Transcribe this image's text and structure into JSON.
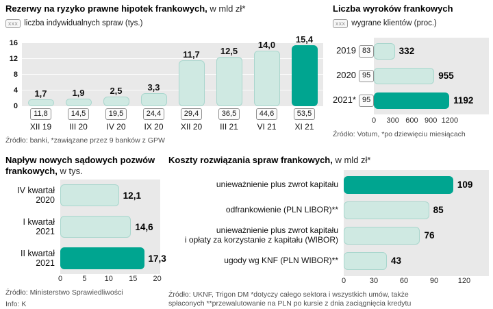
{
  "colors": {
    "teal_dark": "#00a590",
    "teal_light": "#cfe9e2",
    "plot_background": "#e9e9e9"
  },
  "chart_data": [
    {
      "id": "loan-loss-reserves",
      "type": "bar",
      "orientation": "vertical",
      "title_bold": "Rezerwy na ryzyko prawne hipotek frankowych,",
      "title_rest": " w mld zł*",
      "legend_key": "xxx",
      "legend_label": "liczba indywidualnych spraw (tys.)",
      "ylim": [
        0,
        16
      ],
      "yticks": [
        "16",
        "12",
        "8",
        "4",
        "0"
      ],
      "categories": [
        "XII 19",
        "III 20",
        "IV 20",
        "IX 20",
        "XII 20",
        "III 21",
        "VI 21",
        "XI 21"
      ],
      "values": [
        1.7,
        1.9,
        2.5,
        3.3,
        11.7,
        12.5,
        14.0,
        15.4
      ],
      "value_labels": [
        "1,7",
        "1,9",
        "2,5",
        "3,3",
        "11,7",
        "12,5",
        "14,0",
        "15,4"
      ],
      "individual_cases_thousands": [
        "11,8",
        "14,5",
        "19,5",
        "24,4",
        "29,4",
        "36,5",
        "44,6",
        "53,5"
      ],
      "highlight_index": 7,
      "source": "Źródło: banki, *zawiązane przez 9 banków z GPW"
    },
    {
      "id": "court-verdicts",
      "type": "bar",
      "orientation": "horizontal",
      "title_bold": "Liczba wyroków frankowych",
      "title_rest": "",
      "legend_key": "xxx",
      "legend_label": "wygrane klientów (proc.)",
      "xlim": [
        0,
        1200
      ],
      "xticks": [
        "0",
        "300",
        "600",
        "900",
        "1200"
      ],
      "rows": [
        {
          "label": "2019",
          "boxed": "83",
          "value": 332,
          "value_label": "332"
        },
        {
          "label": "2020",
          "boxed": "95",
          "value": 955,
          "value_label": "955"
        },
        {
          "label": "2021*",
          "boxed": "95",
          "value": 1192,
          "value_label": "1192",
          "highlight": true
        }
      ],
      "source": "Źródło: Votum, *po dziewięciu miesiącach"
    },
    {
      "id": "new-lawsuits",
      "type": "bar",
      "orientation": "horizontal",
      "title_bold": "Napływ nowych sądowych pozwów frankowych,",
      "title_rest": " w tys.",
      "xlim": [
        0,
        20
      ],
      "xticks": [
        "0",
        "5",
        "10",
        "15",
        "20"
      ],
      "rows": [
        {
          "label": "IV kwartał\n2020",
          "value": 12.1,
          "value_label": "12,1"
        },
        {
          "label": "I kwartał\n2021",
          "value": 14.6,
          "value_label": "14,6"
        },
        {
          "label": "II kwartał\n2021",
          "value": 17.3,
          "value_label": "17,3",
          "highlight": true
        }
      ],
      "source": "Źródło: Ministerstwo Sprawiedliwości",
      "footer": "Info: K"
    },
    {
      "id": "resolution-costs",
      "type": "bar",
      "orientation": "horizontal",
      "title_bold": "Koszty rozwiązania spraw frankowych,",
      "title_rest": " w mld zł*",
      "xlim": [
        0,
        120
      ],
      "xticks": [
        "0",
        "30",
        "60",
        "90",
        "120"
      ],
      "rows": [
        {
          "label": "unieważnienie plus zwrot kapitału",
          "value": 109,
          "value_label": "109",
          "highlight": true
        },
        {
          "label": "odfrankowienie (PLN LIBOR)**",
          "value": 85,
          "value_label": "85"
        },
        {
          "label": "unieważnienie plus zwrot kapitału\ni opłaty za korzystanie z kapitału (WIBOR)",
          "value": 76,
          "value_label": "76"
        },
        {
          "label": "ugody wg KNF (PLN WIBOR)**",
          "value": 43,
          "value_label": "43"
        }
      ],
      "source": "Źródło: UKNF, Trigon DM *dotyczy całego sektora i wszystkich umów, także\nspłaconych **przewalutowanie na PLN po kursie z dnia zaciągnięcia kredytu"
    }
  ]
}
